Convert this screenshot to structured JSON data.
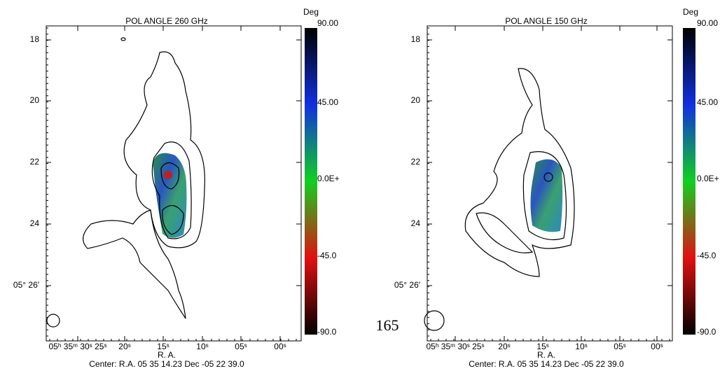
{
  "panels": [
    {
      "title": "POL ANGLE 260 GHz",
      "colorbar": {
        "unit": "Deg",
        "labels": [
          "90.00",
          "45.00",
          "0.0E+",
          "-45.0",
          "-90.0"
        ]
      },
      "y_labels": [
        "18",
        "20",
        "22",
        "24",
        "05° 26′"
      ],
      "x_labels": [
        "05ʰ 35ᵐ 30ˢ 25ˢ",
        "20ˢ",
        "15ˢ",
        "10ˢ",
        "05ˢ",
        "00ˢ"
      ],
      "x_title": "R. A.",
      "center": "Center:  R.A. 05 35 14.23     Dec -05 22 39.0"
    },
    {
      "title": "POL ANGLE 150 GHz",
      "colorbar": {
        "unit": "Deg",
        "labels": [
          "90.00",
          "45.00",
          "0.0E+",
          "-45.0",
          "-90.0"
        ]
      },
      "y_labels": [
        "18",
        "20",
        "22",
        "24",
        "05° 26′"
      ],
      "x_labels": [
        "05ʰ 35ᵐ 30ˢ 25ˢ",
        "20ˢ",
        "15ˢ",
        "10ˢ",
        "05ˢ",
        "00ˢ"
      ],
      "x_title": "R. A.",
      "center": "Center:  R.A. 05 35 14.23     Dec -05 22 39.0"
    }
  ],
  "page_number": "165"
}
